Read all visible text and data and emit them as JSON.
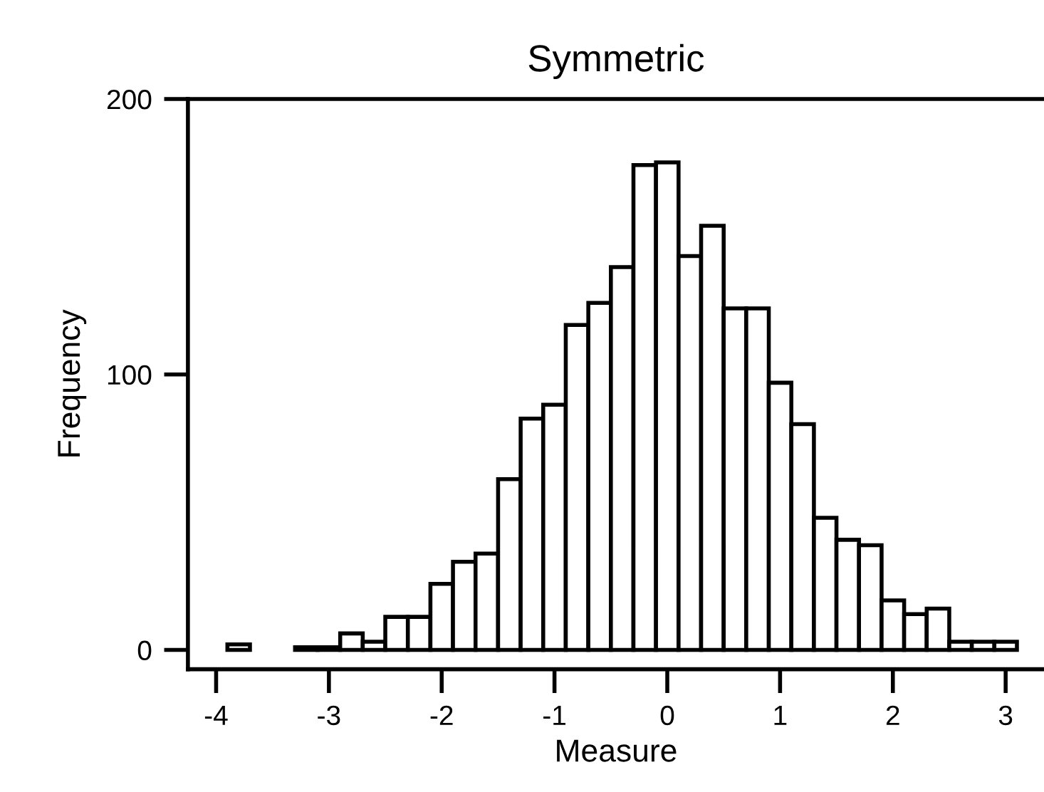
{
  "chart_data": {
    "type": "histogram",
    "title": "Symmetric",
    "xlabel": "Measure",
    "ylabel": "Frequency",
    "bins": [
      -3.9,
      -3.7,
      -3.5,
      -3.3,
      -3.1,
      -2.9,
      -2.7,
      -2.5,
      -2.3,
      -2.1,
      -1.9,
      -1.7,
      -1.5,
      -1.3,
      -1.1,
      -0.9,
      -0.7,
      -0.5,
      -0.3,
      -0.1,
      0.1,
      0.3,
      0.5,
      0.7,
      0.9,
      1.1,
      1.3,
      1.5,
      1.7,
      1.9,
      2.1,
      2.3,
      2.5,
      2.7,
      2.9,
      3.1
    ],
    "values": [
      2,
      0,
      0,
      1,
      1,
      6,
      3,
      12,
      12,
      24,
      32,
      35,
      62,
      84,
      89,
      118,
      126,
      139,
      176,
      177,
      143,
      154,
      124,
      124,
      97,
      82,
      48,
      40,
      38,
      18,
      13,
      15,
      3,
      3,
      3
    ],
    "color": "#ffffff",
    "xlim": [
      -4.25,
      3.34
    ],
    "ylim": [
      -7,
      200
    ],
    "xticks": [
      {
        "value": -4,
        "label": "-4"
      },
      {
        "value": -3,
        "label": "-3"
      },
      {
        "value": -2,
        "label": "-2"
      },
      {
        "value": -1,
        "label": "-1"
      },
      0,
      1,
      2,
      3
    ],
    "yticks": [
      0,
      100,
      200
    ],
    "grid": false,
    "legend": false
  }
}
